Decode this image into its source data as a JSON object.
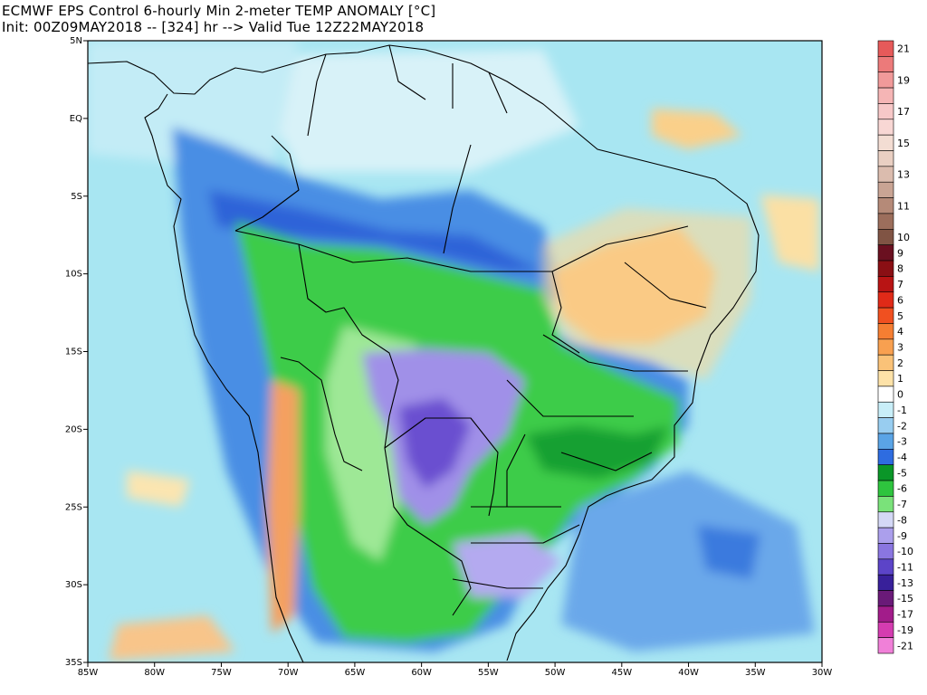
{
  "title": {
    "line1": "ECMWF EPS Control 6-hourly Min 2-meter TEMP ANOMALY [°C]",
    "line2": "Init: 00Z09MAY2018 -- [324] hr --> Valid Tue 12Z22MAY2018"
  },
  "map": {
    "lon_range": [
      -85,
      -30
    ],
    "lat_range": [
      -35,
      5
    ],
    "x_ticks": [
      {
        "value": -85,
        "label": "85W"
      },
      {
        "value": -80,
        "label": "80W"
      },
      {
        "value": -75,
        "label": "75W"
      },
      {
        "value": -70,
        "label": "70W"
      },
      {
        "value": -65,
        "label": "65W"
      },
      {
        "value": -60,
        "label": "60W"
      },
      {
        "value": -55,
        "label": "55W"
      },
      {
        "value": -50,
        "label": "50W"
      },
      {
        "value": -45,
        "label": "45W"
      },
      {
        "value": -40,
        "label": "40W"
      },
      {
        "value": -35,
        "label": "35W"
      },
      {
        "value": -30,
        "label": "30W"
      }
    ],
    "y_ticks": [
      {
        "value": 5,
        "label": "5N"
      },
      {
        "value": 0,
        "label": "EQ"
      },
      {
        "value": -5,
        "label": "5S"
      },
      {
        "value": -10,
        "label": "10S"
      },
      {
        "value": -15,
        "label": "15S"
      },
      {
        "value": -20,
        "label": "20S"
      },
      {
        "value": -25,
        "label": "25S"
      },
      {
        "value": -30,
        "label": "30S"
      },
      {
        "value": -35,
        "label": "35S"
      }
    ],
    "background_color": "#a8e6f2"
  },
  "colorbar": {
    "entries": [
      {
        "label": "21",
        "color": "#e65a5a"
      },
      {
        "label": "",
        "color": "#ec7a7a"
      },
      {
        "label": "19",
        "color": "#f19a9a"
      },
      {
        "label": "",
        "color": "#f5b5b5"
      },
      {
        "label": "17",
        "color": "#f7c8c8"
      },
      {
        "label": "",
        "color": "#f8d7d4"
      },
      {
        "label": "15",
        "color": "#f3ddd3"
      },
      {
        "label": "",
        "color": "#e9cfc2"
      },
      {
        "label": "13",
        "color": "#dbbcae"
      },
      {
        "label": "",
        "color": "#c9a494"
      },
      {
        "label": "11",
        "color": "#b58a78"
      },
      {
        "label": "",
        "color": "#9c6e5c"
      },
      {
        "label": "10",
        "color": "#805444"
      },
      {
        "label": "9",
        "color": "#6a1020"
      },
      {
        "label": "8",
        "color": "#8a0f14"
      },
      {
        "label": "7",
        "color": "#b81414"
      },
      {
        "label": "6",
        "color": "#e02a18"
      },
      {
        "label": "5",
        "color": "#f05020"
      },
      {
        "label": "4",
        "color": "#f57e32"
      },
      {
        "label": "3",
        "color": "#f8a050"
      },
      {
        "label": "2",
        "color": "#fac278"
      },
      {
        "label": "1",
        "color": "#fde2a8"
      },
      {
        "label": "0",
        "color": "#ffffff"
      },
      {
        "label": "-1",
        "color": "#c8eef8"
      },
      {
        "label": "-2",
        "color": "#98cdf0"
      },
      {
        "label": "-3",
        "color": "#5aa4e6"
      },
      {
        "label": "-4",
        "color": "#2e6ce0"
      },
      {
        "label": "-5",
        "color": "#0a9628"
      },
      {
        "label": "-6",
        "color": "#2ec43e"
      },
      {
        "label": "-7",
        "color": "#7ae27a"
      },
      {
        "label": "-8",
        "color": "#d4d8f6"
      },
      {
        "label": "-9",
        "color": "#ab9fec"
      },
      {
        "label": "-10",
        "color": "#8a76e0"
      },
      {
        "label": "-11",
        "color": "#5c44c8"
      },
      {
        "label": "-13",
        "color": "#38209a"
      },
      {
        "label": "-15",
        "color": "#6a1a78"
      },
      {
        "label": "-17",
        "color": "#a21c8a"
      },
      {
        "label": "-19",
        "color": "#d43cb0"
      },
      {
        "label": "-21",
        "color": "#f080d8"
      }
    ]
  }
}
